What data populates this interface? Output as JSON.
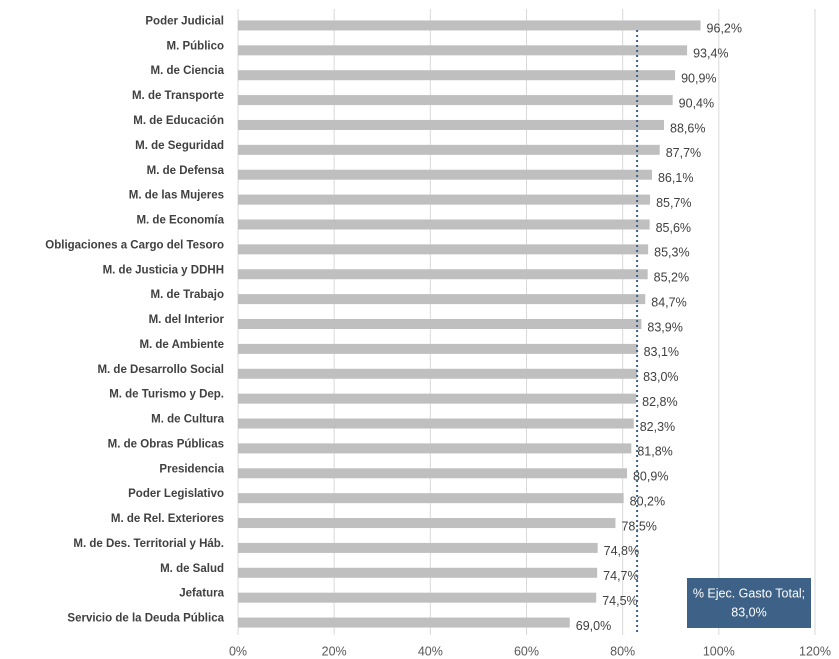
{
  "chart_data": {
    "type": "barh",
    "categories": [
      "Poder Judicial",
      "M. Público",
      "M. de Ciencia",
      "M. de Transporte",
      "M. de Educación",
      "M. de Seguridad",
      "M. de Defensa",
      "M. de las Mujeres",
      "M. de Economía",
      "Obligaciones a Cargo del Tesoro",
      "M. de Justicia y DDHH",
      "M. de Trabajo",
      "M. del Interior",
      "M. de Ambiente",
      "M. de Desarrollo Social",
      "M. de Turismo y Dep.",
      "M. de Cultura",
      "M. de Obras Públicas",
      "Presidencia",
      "Poder Legislativo",
      "M. de Rel. Exteriores",
      "M. de Des. Territorial y Háb.",
      "M. de Salud",
      "Jefatura",
      "Servicio de la Deuda Pública"
    ],
    "values": [
      96.2,
      93.4,
      90.9,
      90.4,
      88.6,
      87.7,
      86.1,
      85.7,
      85.6,
      85.3,
      85.2,
      84.7,
      83.9,
      83.1,
      83.0,
      82.8,
      82.3,
      81.8,
      80.9,
      80.2,
      78.5,
      74.8,
      74.7,
      74.5,
      69.0
    ],
    "value_labels": [
      "96,2%",
      "93,4%",
      "90,9%",
      "90,4%",
      "88,6%",
      "87,7%",
      "86,1%",
      "85,7%",
      "85,6%",
      "85,3%",
      "85,2%",
      "84,7%",
      "83,9%",
      "83,1%",
      "83,0%",
      "82,8%",
      "82,3%",
      "81,8%",
      "80,9%",
      "80,2%",
      "78,5%",
      "74,8%",
      "74,7%",
      "74,5%",
      "69,0%"
    ],
    "color": "#bfbfbf",
    "xlim": [
      0,
      120
    ],
    "xticks": [
      {
        "value": 0,
        "label": "0%"
      },
      {
        "value": 20,
        "label": "20%"
      },
      {
        "value": 40,
        "label": "40%"
      },
      {
        "value": 60,
        "label": "60%"
      },
      {
        "value": 80,
        "label": "80%"
      },
      {
        "value": 100,
        "label": "100%"
      },
      {
        "value": 120,
        "label": "120%"
      }
    ],
    "grid": true,
    "reference_line": {
      "value": 83.0,
      "label": "% Ejec. Gasto Total;",
      "value_label": "83,0%",
      "color": "#3e6287"
    }
  }
}
